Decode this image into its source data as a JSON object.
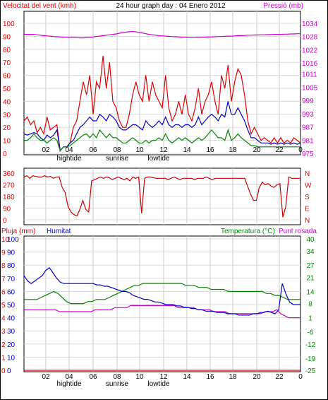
{
  "chart_data": [
    {
      "type": "line",
      "header": {
        "left": "Velocitat del vent (kmh)",
        "center": "24 hour graph day : 04 Enero 2012",
        "right": "Pressió (mb)"
      },
      "left_axis": {
        "ticks": [
          0,
          10,
          20,
          30,
          40,
          50,
          60,
          70,
          80,
          90,
          100
        ],
        "ylim": [
          0,
          100
        ]
      },
      "right_axis": {
        "ticks": [
          975,
          981,
          987,
          993,
          999,
          1005,
          1011,
          1016,
          1022,
          1028,
          1034
        ],
        "ylim": [
          975,
          1034
        ]
      },
      "x_ticks": [
        "02",
        "04",
        "06",
        "08",
        "10",
        "12",
        "14",
        "16",
        "18",
        "20",
        "22",
        "0"
      ],
      "x_sub_labels": [
        "hightide",
        "sunrise",
        "lowtide"
      ],
      "series": [
        {
          "color": "#dd0000",
          "y": [
            25,
            28,
            22,
            25,
            16,
            20,
            15,
            28,
            18,
            20,
            22,
            2,
            5,
            5,
            8,
            20,
            25,
            40,
            55,
            45,
            60,
            30,
            55,
            50,
            75,
            50,
            70,
            40,
            35,
            25,
            20,
            20,
            30,
            45,
            55,
            45,
            40,
            60,
            40,
            55,
            45,
            40,
            35,
            60,
            35,
            25,
            30,
            40,
            30,
            45,
            30,
            25,
            35,
            50,
            30,
            40,
            45,
            55,
            40,
            30,
            60,
            50,
            68,
            40,
            55,
            65,
            60,
            45,
            25,
            15,
            20,
            15,
            10,
            12,
            10,
            8,
            12,
            8,
            12,
            8,
            10,
            8,
            12,
            10,
            8
          ]
        },
        {
          "color": "#0000cc",
          "y": [
            15,
            14,
            15,
            16,
            15,
            12,
            10,
            14,
            12,
            14,
            18,
            2,
            5,
            5,
            8,
            10,
            15,
            20,
            22,
            25,
            28,
            25,
            25,
            30,
            28,
            25,
            30,
            28,
            25,
            20,
            18,
            18,
            20,
            22,
            22,
            20,
            18,
            25,
            22,
            20,
            22,
            25,
            22,
            28,
            22,
            20,
            22,
            22,
            20,
            22,
            22,
            20,
            22,
            28,
            22,
            25,
            28,
            30,
            28,
            25,
            30,
            28,
            40,
            30,
            30,
            35,
            30,
            25,
            18,
            12,
            12,
            10,
            8,
            8,
            8,
            7,
            8,
            7,
            8,
            7,
            8,
            7,
            8,
            7,
            8
          ]
        },
        {
          "color": "#008800",
          "y": [
            10,
            10,
            12,
            15,
            12,
            10,
            10,
            8,
            10,
            12,
            10,
            2,
            5,
            5,
            6,
            8,
            10,
            12,
            14,
            15,
            12,
            15,
            12,
            18,
            15,
            12,
            15,
            12,
            12,
            10,
            8,
            8,
            10,
            12,
            10,
            8,
            8,
            10,
            8,
            10,
            10,
            12,
            10,
            15,
            10,
            8,
            10,
            12,
            10,
            12,
            10,
            8,
            10,
            12,
            10,
            12,
            15,
            18,
            15,
            12,
            12,
            10,
            18,
            10,
            12,
            15,
            12,
            10,
            8,
            6,
            6,
            5,
            5,
            5,
            5,
            5,
            5,
            5,
            5,
            5,
            5,
            5,
            5,
            5,
            5
          ]
        },
        {
          "color": "#cc00cc",
          "y": [
            1029,
            1029,
            1029,
            1029,
            1028.8,
            1028.6,
            1028.4,
            1028.3,
            1028.2,
            1028.0,
            1027.9,
            1027.8,
            1027.7,
            1027.6,
            1027.6,
            1027.5,
            1027.5,
            1027.4,
            1027.4,
            1027.5,
            1027.6,
            1027.8,
            1028.0,
            1028.2,
            1028.4,
            1028.6,
            1028.8,
            1029,
            1029.2,
            1029.5,
            1029.8,
            1030,
            1030.2,
            1030.3,
            1030.1,
            1029.9,
            1029.6,
            1029.3,
            1029,
            1028.8,
            1028.6,
            1028.4,
            1028.3,
            1028.2,
            1028.1,
            1028.0,
            1027.9,
            1027.8,
            1027.7,
            1027.6,
            1027.5,
            1027.5,
            1027.5,
            1027.6,
            1027.6,
            1027.7,
            1027.8,
            1027.8,
            1027.9,
            1028.0,
            1028.0,
            1028.1,
            1028.2,
            1028.2,
            1028.3,
            1028.4,
            1028.4,
            1028.5,
            1028.6,
            1028.6,
            1028.7,
            1028.7,
            1028.8,
            1028.8,
            1028.9,
            1028.9,
            1029,
            1029,
            1029,
            1029.1,
            1029.1,
            1029.2,
            1029.2,
            1029.3,
            1029.3
          ]
        }
      ]
    },
    {
      "type": "line",
      "left_axis": {
        "ticks": [
          360,
          270,
          180,
          90,
          0
        ],
        "ylim": [
          0,
          360
        ]
      },
      "right_axis": {
        "ticks": [
          "N",
          "W",
          "S",
          "E",
          "N"
        ]
      },
      "series": [
        {
          "color": "#cc0000",
          "y": [
            330,
            340,
            320,
            340,
            335,
            330,
            330,
            340,
            330,
            335,
            320,
            330,
            330,
            250,
            210,
            100,
            60,
            40,
            30,
            80,
            150,
            80,
            60,
            300,
            310,
            320,
            330,
            320,
            330,
            325,
            310,
            320,
            330,
            320,
            310,
            320,
            300,
            330,
            320,
            330,
            50,
            320,
            330,
            330,
            325,
            320,
            320,
            320,
            320,
            310,
            320,
            330,
            320,
            310,
            320,
            320,
            320,
            320,
            310,
            320,
            320,
            320,
            330,
            320,
            310,
            320,
            320,
            320,
            320,
            320,
            320,
            320,
            320,
            320,
            320,
            320,
            260,
            200,
            150,
            150,
            250,
            290,
            270,
            280,
            260,
            250,
            270,
            280,
            20,
            100,
            330,
            320,
            320,
            320,
            320
          ]
        }
      ]
    },
    {
      "type": "line",
      "header": {
        "left_red": "Pluja (mm)",
        "left_blue": "Humitat",
        "right_green": "Temperatura (°C)",
        "right_magenta": "Punt rosada"
      },
      "left_axis_red": {
        "ticks": [
          10,
          9,
          8,
          7,
          6,
          5,
          4,
          3,
          2,
          1,
          0
        ],
        "ylim": [
          0,
          10
        ]
      },
      "left_axis_blue": {
        "ticks": [
          100,
          90,
          80,
          70,
          60,
          50,
          40,
          30,
          20,
          10,
          0
        ],
        "ylim": [
          0,
          100
        ]
      },
      "right_axis": {
        "ticks": [
          40,
          34,
          27,
          21,
          14,
          8,
          1,
          -6,
          -12,
          -19,
          -25
        ],
        "ylim": [
          -25,
          40
        ]
      },
      "x_ticks": [
        "02",
        "04",
        "06",
        "08",
        "10",
        "12",
        "14",
        "16",
        "18",
        "20",
        "22",
        "0"
      ],
      "x_sub_labels": [
        "hightide",
        "sunrise",
        "lowtide"
      ],
      "series": [
        {
          "name": "Humitat",
          "color": "#0000cc",
          "y": [
            72,
            68,
            66,
            68,
            70,
            72,
            76,
            78,
            74,
            70,
            67,
            66,
            66,
            66,
            66,
            66,
            66,
            66,
            66,
            66,
            65,
            65,
            64,
            64,
            63,
            62,
            61,
            60,
            60,
            59,
            57,
            56,
            55,
            54,
            54,
            53,
            52,
            52,
            51,
            50,
            50,
            50,
            49,
            49,
            48,
            48,
            47,
            47,
            46,
            46,
            45,
            45,
            45,
            44,
            44,
            44,
            43,
            43,
            43,
            42,
            42,
            42,
            42,
            43,
            43,
            44,
            44,
            45,
            44,
            43,
            46,
            66,
            58,
            52,
            50,
            50,
            50
          ]
        },
        {
          "name": "Temperatura (°C)",
          "color": "#008800",
          "y": [
            10,
            10,
            10,
            10,
            11,
            12,
            13,
            14,
            13,
            11,
            9,
            8,
            8,
            8,
            8,
            9,
            9,
            10,
            10,
            10,
            11,
            12,
            13,
            14,
            15,
            16,
            17,
            17,
            18,
            18,
            18,
            18,
            18,
            18,
            18,
            18,
            18,
            18,
            17,
            17,
            17,
            16,
            16,
            16,
            15,
            15,
            15,
            15,
            14,
            14,
            14,
            14,
            14,
            14,
            14,
            14,
            14,
            13,
            13,
            12,
            12,
            11,
            10,
            10,
            10,
            10
          ]
        },
        {
          "name": "Punt rosada",
          "color": "#cc00cc",
          "y": [
            5,
            5,
            5,
            5,
            5,
            5,
            5,
            5,
            5,
            4,
            4,
            4,
            4,
            4,
            4,
            4,
            4,
            4,
            5,
            5,
            5,
            5,
            5,
            6,
            6,
            6,
            6,
            7,
            7,
            7,
            7,
            7,
            7,
            7,
            7,
            7,
            7,
            7,
            7,
            6,
            6,
            6,
            6,
            6,
            5,
            5,
            5,
            5,
            4,
            4,
            4,
            4,
            3,
            3,
            3,
            3,
            3,
            3,
            3,
            3,
            3,
            4,
            4,
            4,
            5,
            3,
            2,
            1,
            1,
            1,
            1
          ]
        },
        {
          "name": "Pluja (mm)",
          "color": "#dd0000",
          "y": [
            0,
            0,
            0,
            0,
            0,
            0,
            0,
            0,
            0,
            0,
            0,
            0
          ]
        }
      ]
    }
  ]
}
